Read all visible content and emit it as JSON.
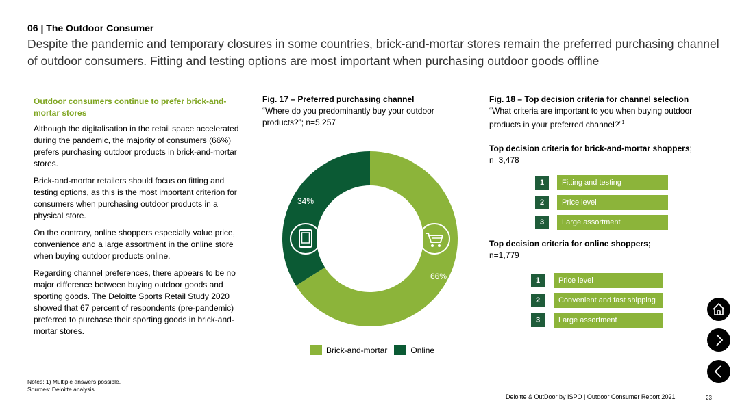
{
  "header": {
    "section": "06 | The Outdoor Consumer",
    "headline": "Despite the pandemic and temporary closures in some countries, brick-and-mortar stores remain the preferred purchasing channel of outdoor consumers. Fitting and testing options are most important when purchasing outdoor goods offline"
  },
  "left": {
    "lead": "Outdoor consumers continue to prefer brick-and-mortar stores",
    "p1": "Although the digitalisation in the retail space accelerated during the pandemic, the majority of consumers (66%) prefers purchasing outdoor products in brick-and-mortar stores.",
    "p2": "Brick-and-mortar retailers should focus on fitting and testing options, as this is the most important criterion for consumers when purchasing outdoor products in a physical store.",
    "p3": "On the contrary, online shoppers especially value price, convenience and a large assortment in the online store when buying outdoor products online.",
    "p4": "Regarding channel preferences, there appears to be no major difference between buying outdoor goods and sporting goods. The Deloitte Sports Retail Study 2020 showed that 67 percent of respondents (pre-pandemic) preferred to purchase their sporting goods in brick-and-mortar stores."
  },
  "fig17": {
    "title": "Fig. 17 – Preferred purchasing channel",
    "subtitle": "“Where do you predominantly buy your outdoor products?”; n=5,257"
  },
  "fig18": {
    "title": "Fig. 18 – Top decision criteria for channel selection",
    "subtitle": "“What criteria are important to you when buying outdoor products in your preferred channel?”",
    "footnote_mark": "1",
    "bm_head": "Top decision criteria for brick-and-mortar shoppers",
    "bm_head_suffix": ";",
    "bm_n": "n=3,478",
    "on_head": "Top decision criteria for online shoppers;",
    "on_n": "n=1,779"
  },
  "chart_data": [
    {
      "type": "pie",
      "title": "Fig. 17 – Preferred purchasing channel",
      "categories": [
        "Brick-and-mortar",
        "Online"
      ],
      "values": [
        66,
        34
      ],
      "data_labels": [
        "66%",
        "34%"
      ],
      "colors": [
        "#8cb43a",
        "#0b5a34"
      ],
      "legend_position": "bottom"
    },
    {
      "type": "table",
      "title": "Top decision criteria for brick-and-mortar shoppers",
      "ranks": [
        "1",
        "2",
        "3"
      ],
      "items": [
        "Fitting and testing",
        "Price level",
        "Large assortment"
      ]
    },
    {
      "type": "table",
      "title": "Top decision criteria for online shoppers",
      "ranks": [
        "1",
        "2",
        "3"
      ],
      "items": [
        "Price level",
        "Convenient and fast shipping",
        "Large assortment"
      ]
    }
  ],
  "legend": {
    "bm": "Brick-and-mortar",
    "online": "Online"
  },
  "icons": {
    "store": "tablet-icon",
    "cart": "shopping-cart-icon",
    "home": "home-icon",
    "next": "chevron-right-icon",
    "prev": "chevron-left-icon"
  },
  "colors": {
    "green_light": "#8cb43a",
    "green_dark": "#0b5a34",
    "rank_box": "#1f5c3a"
  },
  "notes": {
    "n1": "Notes: 1) Multiple answers possible.",
    "n2": "Sources: Deloitte analysis"
  },
  "footer": {
    "source": "Deloitte & OutDoor by ISPO | Outdoor Consumer Report 2021",
    "page": "23"
  }
}
